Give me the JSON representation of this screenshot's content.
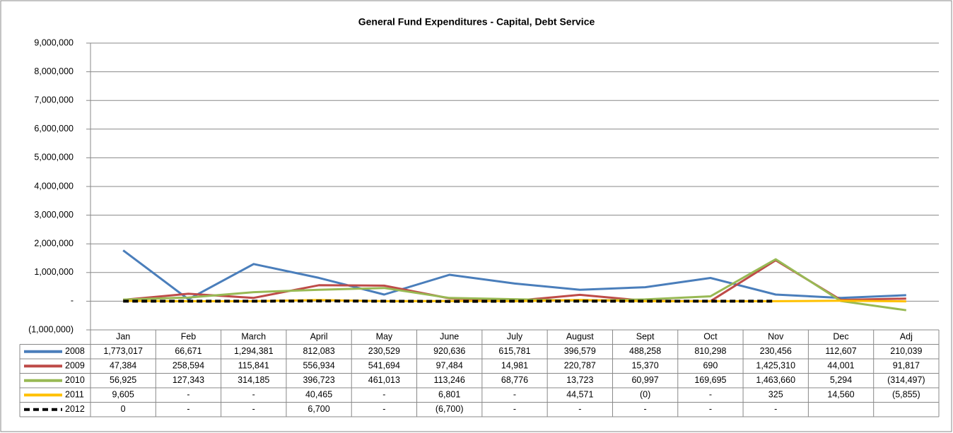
{
  "chart_data": {
    "type": "line",
    "title": "General Fund Expenditures - Capital, Debt Service",
    "categories": [
      "Jan",
      "Feb",
      "March",
      "April",
      "May",
      "June",
      "July",
      "August",
      "Sept",
      "Oct",
      "Nov",
      "Dec",
      "Adj"
    ],
    "ylim": [
      -1000000,
      9000000
    ],
    "yticks": [
      {
        "value": -1000000,
        "label": "(1,000,000)"
      },
      {
        "value": 0,
        "label": "-"
      },
      {
        "value": 1000000,
        "label": "1,000,000"
      },
      {
        "value": 2000000,
        "label": "2,000,000"
      },
      {
        "value": 3000000,
        "label": "3,000,000"
      },
      {
        "value": 4000000,
        "label": "4,000,000"
      },
      {
        "value": 5000000,
        "label": "5,000,000"
      },
      {
        "value": 6000000,
        "label": "6,000,000"
      },
      {
        "value": 7000000,
        "label": "7,000,000"
      },
      {
        "value": 8000000,
        "label": "8,000,000"
      },
      {
        "value": 9000000,
        "label": "9,000,000"
      }
    ],
    "grid": true,
    "data_table": true,
    "series": [
      {
        "name": "2008",
        "color": "#4a7ebb",
        "dashed": false,
        "values": [
          1773017,
          66671,
          1294381,
          812083,
          230529,
          920636,
          615781,
          396579,
          488258,
          810298,
          230456,
          112607,
          210039
        ],
        "value_labels": [
          "1,773,017",
          "66,671",
          "1,294,381",
          "812,083",
          "230,529",
          "920,636",
          "615,781",
          "396,579",
          "488,258",
          "810,298",
          "230,456",
          "112,607",
          "210,039"
        ]
      },
      {
        "name": "2009",
        "color": "#be4b48",
        "dashed": false,
        "values": [
          47384,
          258594,
          115841,
          556934,
          541694,
          97484,
          14981,
          220787,
          15370,
          690,
          1425310,
          44001,
          91817
        ],
        "value_labels": [
          "47,384",
          "258,594",
          "115,841",
          "556,934",
          "541,694",
          "97,484",
          "14,981",
          "220,787",
          "15,370",
          "690",
          "1,425,310",
          "44,001",
          "91,817"
        ]
      },
      {
        "name": "2010",
        "color": "#98b954",
        "dashed": false,
        "values": [
          56925,
          127343,
          314185,
          396723,
          461013,
          113246,
          68776,
          13723,
          60997,
          169695,
          1463660,
          5294,
          -314497
        ],
        "value_labels": [
          "56,925",
          "127,343",
          "314,185",
          "396,723",
          "461,013",
          "113,246",
          "68,776",
          "13,723",
          "60,997",
          "169,695",
          "1,463,660",
          "5,294",
          "(314,497)"
        ]
      },
      {
        "name": "2011",
        "color": "#ffc000",
        "dashed": false,
        "values": [
          9605,
          0,
          0,
          40465,
          0,
          6801,
          0,
          44571,
          0,
          0,
          325,
          14560,
          -5855
        ],
        "value_labels": [
          "9,605",
          "-",
          "-",
          "40,465",
          "-",
          "6,801",
          "-",
          "44,571",
          "(0)",
          "-",
          "325",
          "14,560",
          "(5,855)"
        ]
      },
      {
        "name": "2012",
        "color": "#000000",
        "dashed": true,
        "values": [
          0,
          0,
          0,
          6700,
          0,
          -6700,
          0,
          0,
          0,
          0,
          0,
          null,
          null
        ],
        "value_labels": [
          "0",
          "-",
          "-",
          "6,700",
          "-",
          "(6,700)",
          "-",
          "-",
          "-",
          "-",
          "-",
          null,
          null
        ]
      }
    ]
  }
}
